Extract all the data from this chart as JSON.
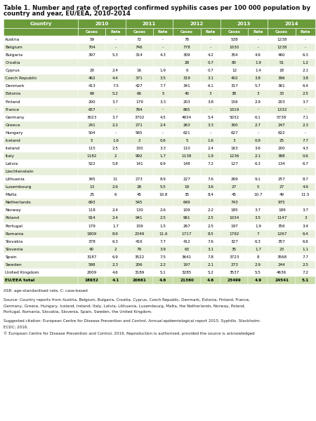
{
  "title": "Table 1. Number and rate of reported confirmed syphilis cases per 100 000 population by\ncountry and year, EU/EEA, 2010–2014",
  "header_bg": "#6a9a3a",
  "row_alt_color": "#e8f0dc",
  "row_main_color": "#ffffff",
  "bold_row_bg": "#c8dca8",
  "years": [
    "2010",
    "2011",
    "2012",
    "2013",
    "2014"
  ],
  "rows": [
    [
      "Austria",
      "59",
      "-",
      "72",
      "-",
      "78",
      "-",
      "538",
      "-",
      "1238",
      "-"
    ],
    [
      "Belgium",
      "704",
      "-",
      "746",
      "-",
      "778",
      "-",
      "1030",
      "-",
      "1238",
      "-"
    ],
    [
      "Bulgaria",
      "397",
      "5.3",
      "314",
      "4.3",
      "309",
      "4.2",
      "354",
      "4.9",
      "460",
      "6.3"
    ],
    [
      "Croatia",
      "",
      "",
      "",
      "",
      "28",
      "0.7",
      "80",
      "1.9",
      "51",
      "1.2"
    ],
    [
      "Cyprus",
      "20",
      "2.4",
      "16",
      "1.9",
      "6",
      "0.7",
      "12",
      "1.4",
      "18",
      "2.1"
    ],
    [
      "Czech Republic",
      "462",
      "4.4",
      "371",
      "3.5",
      "319",
      "3.1",
      "402",
      "3.8",
      "396",
      "3.8"
    ],
    [
      "Denmark",
      "413",
      "7.5",
      "427",
      "7.7",
      "341",
      "6.1",
      "317",
      "5.7",
      "361",
      "6.4"
    ],
    [
      "Estonia",
      "69",
      "5.2",
      "66",
      "5",
      "40",
      "3",
      "38",
      "3",
      "33",
      "2.5"
    ],
    [
      "Finland",
      "200",
      "3.7",
      "179",
      "3.3",
      "203",
      "3.8",
      "156",
      "2.9",
      "203",
      "3.7"
    ],
    [
      "France",
      "657",
      "-",
      "784",
      "-",
      "865",
      "-",
      "1019",
      "-",
      "1332",
      "-"
    ],
    [
      "Germany",
      "3023",
      "3.7",
      "3702",
      "4.5",
      "4934",
      "5.4",
      "5032",
      "6.1",
      "5738",
      "7.1"
    ],
    [
      "Greece",
      "241",
      "2.2",
      "271",
      "2.4",
      "263",
      "3.3",
      "300",
      "2.7",
      "247",
      "2.3"
    ],
    [
      "Hungary",
      "504",
      "-",
      "565",
      "-",
      "621",
      "-",
      "627",
      "-",
      "622",
      "-"
    ],
    [
      "Iceland",
      "5",
      "1.6",
      "2",
      "0.6",
      "5",
      "1.6",
      "3",
      "0.9",
      "25",
      "7.7"
    ],
    [
      "Ireland",
      "115",
      "2.5",
      "150",
      "3.3",
      "110",
      "2.4",
      "163",
      "3.6",
      "200",
      "4.3"
    ],
    [
      "Italy",
      "1182",
      "2",
      "992",
      "1.7",
      "1138",
      "1.9",
      "1236",
      "2.1",
      "388",
      "0.6"
    ],
    [
      "Latvia",
      "522",
      "5.8",
      "141",
      "6.9",
      "148",
      "7.2",
      "127",
      "6.3",
      "134",
      "6.7"
    ],
    [
      "Liechtenstein",
      "",
      "",
      "",
      "",
      "",
      "",
      "",
      "",
      "",
      ""
    ],
    [
      "Lithuania",
      "345",
      "11",
      "273",
      "8.9",
      "227",
      "7.6",
      "269",
      "9.1",
      "257",
      "8.7"
    ],
    [
      "Luxembourg",
      "13",
      "2.6",
      "28",
      "5.5",
      "19",
      "3.6",
      "27",
      "5",
      "27",
      "4.9"
    ],
    [
      "Malta",
      "25",
      "6",
      "45",
      "10.8",
      "35",
      "8.4",
      "45",
      "10.7",
      "49",
      "11.5"
    ],
    [
      "Netherlands",
      "693",
      "",
      "545",
      "",
      "649",
      "",
      "743",
      "",
      "975",
      ""
    ],
    [
      "Norway",
      "118",
      "2.4",
      "130",
      "2.6",
      "109",
      "2.2",
      "185",
      "3.7",
      "189",
      "3.7"
    ],
    [
      "Poland",
      "914",
      "2.4",
      "941",
      "2.5",
      "961",
      "2.5",
      "1034",
      "3.5",
      "1147",
      "3"
    ],
    [
      "Portugal",
      "179",
      "1.7",
      "159",
      "1.5",
      "267",
      "2.5",
      "197",
      "1.9",
      "356",
      "3.4"
    ],
    [
      "Romania",
      "1809",
      "8.9",
      "2349",
      "11.6",
      "1717",
      "8.5",
      "1792",
      "7",
      "1267",
      "6.4"
    ],
    [
      "Slovakia",
      "378",
      "6.3",
      "416",
      "7.7",
      "412",
      "7.6",
      "327",
      "6.3",
      "357",
      "6.6"
    ],
    [
      "Slovenia",
      "40",
      "2",
      "79",
      "3.9",
      "63",
      "3.1",
      "35",
      "1.7",
      "23",
      "1.1"
    ],
    [
      "Spain",
      "3187",
      "6.9",
      "3522",
      "7.5",
      "3641",
      "7.8",
      "3723",
      "8",
      "3568",
      "7.7"
    ],
    [
      "Sweden",
      "598",
      "2.3",
      "206",
      "2.2",
      "197",
      "2.1",
      "273",
      "2.9",
      "244",
      "2.5"
    ],
    [
      "United Kingdom",
      "2009",
      "4.6",
      "3189",
      "5.1",
      "3285",
      "5.2",
      "3537",
      "5.5",
      "4636",
      "7.2"
    ],
    [
      "EU/EEA total",
      "18932",
      "4.1",
      "20661",
      "4.6",
      "21360",
      "4.6",
      "23499",
      "4.9",
      "24541",
      "5.1"
    ]
  ],
  "footer_lines": [
    "ASR: age-standardised rate, C: case-based",
    "",
    "Source: Country reports from Austria, Belgium, Bulgaria, Croatia, Cyprus, Czech Republic, Denmark, Estonia, Finland, France,",
    "Germany, Greece, Hungary, Iceland, Ireland, Italy, Latvia, Lithuania, Luxembourg, Malta, the Netherlands, Norway, Poland,",
    "Portugal, Romania, Slovakia, Slovenia, Spain, Sweden, the United Kingdom.",
    "",
    "Suggested citation: European Centre for Disease Prevention and Control. Annual epidemiological report 2015. Syphilis. Stockholm:",
    "ECDC; 2016.",
    "© European Centre for Disease Prevention and Control, 2016. Reproduction is authorised, provided the source is acknowledged"
  ]
}
